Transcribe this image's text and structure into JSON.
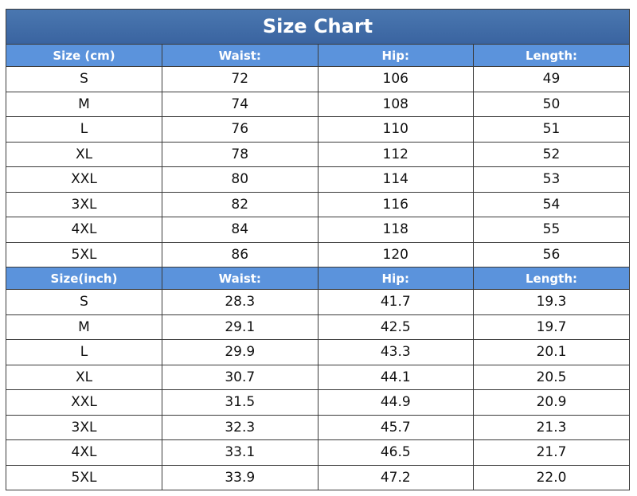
{
  "title": "Size Chart",
  "sections": [
    {
      "headers": [
        "Size (cm)",
        "Waist:",
        "Hip:",
        "Length:"
      ],
      "rows": [
        [
          "S",
          "72",
          "106",
          "49"
        ],
        [
          "M",
          "74",
          "108",
          "50"
        ],
        [
          "L",
          "76",
          "110",
          "51"
        ],
        [
          "XL",
          "78",
          "112",
          "52"
        ],
        [
          "XXL",
          "80",
          "114",
          "53"
        ],
        [
          "3XL",
          "82",
          "116",
          "54"
        ],
        [
          "4XL",
          "84",
          "118",
          "55"
        ],
        [
          "5XL",
          "86",
          "120",
          "56"
        ]
      ]
    },
    {
      "headers": [
        "Size(inch)",
        "Waist:",
        "Hip:",
        "Length:"
      ],
      "rows": [
        [
          "S",
          "28.3",
          "41.7",
          "19.3"
        ],
        [
          "M",
          "29.1",
          "42.5",
          "19.7"
        ],
        [
          "L",
          "29.9",
          "43.3",
          "20.1"
        ],
        [
          "XL",
          "30.7",
          "44.1",
          "20.5"
        ],
        [
          "XXL",
          "31.5",
          "44.9",
          "20.9"
        ],
        [
          "3XL",
          "32.3",
          "45.7",
          "21.3"
        ],
        [
          "4XL",
          "33.1",
          "46.5",
          "21.7"
        ],
        [
          "5XL",
          "33.9",
          "47.2",
          "22.0"
        ]
      ]
    }
  ],
  "colors": {
    "title_bg": "#3f6ca8",
    "header_bg": "#5b93dc",
    "header_text": "#ffffff",
    "border": "#3a3a3a"
  }
}
